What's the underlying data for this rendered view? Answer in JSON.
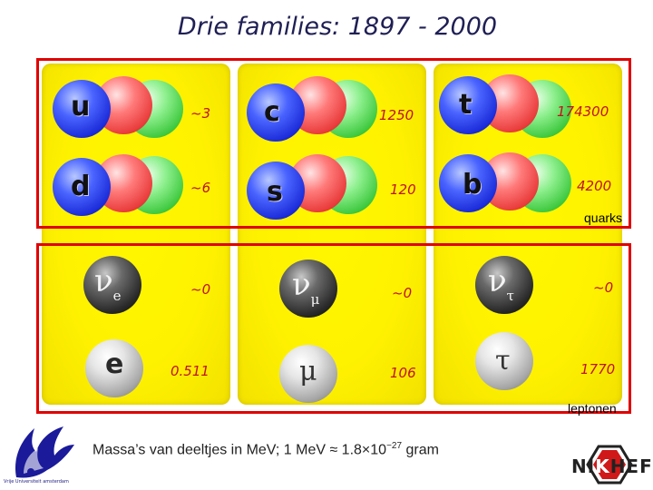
{
  "slide": {
    "title": "Drie families: 1897 - 2000",
    "quarks_label": "quarks",
    "leptons_label": "leptonen",
    "footer_prefix": "Massa’s van deeltjes in MeV; 1 MeV ≈ 1.8×10",
    "footer_exponent": "−27",
    "footer_suffix": " gram"
  },
  "quarks": [
    {
      "symbol": "u",
      "mass": "~3"
    },
    {
      "symbol": "c",
      "mass": "1250"
    },
    {
      "symbol": "t",
      "mass": "174300"
    },
    {
      "symbol": "d",
      "mass": "~6"
    },
    {
      "symbol": "s",
      "mass": "120"
    },
    {
      "symbol": "b",
      "mass": "4200"
    }
  ],
  "neutrinos": [
    {
      "symbol": "ν",
      "subscript": "e",
      "mass": "~0"
    },
    {
      "symbol": "ν",
      "subscript": "μ",
      "mass": "~0"
    },
    {
      "symbol": "ν",
      "subscript": "τ",
      "mass": "~0"
    }
  ],
  "charged_leptons": [
    {
      "symbol": "e",
      "mass": "0.511"
    },
    {
      "symbol": "μ",
      "mass": "106"
    },
    {
      "symbol": "τ",
      "mass": "1770"
    }
  ],
  "logos": {
    "university_caption": "Vrije Universiteit amsterdam",
    "nikhef_text_1": "NI",
    "nikhef_text_2": "K",
    "nikhef_text_3": "HEF"
  },
  "colors": {
    "frame": "#e00000",
    "mass_text": "#c0121c",
    "panel": "#fff200"
  }
}
